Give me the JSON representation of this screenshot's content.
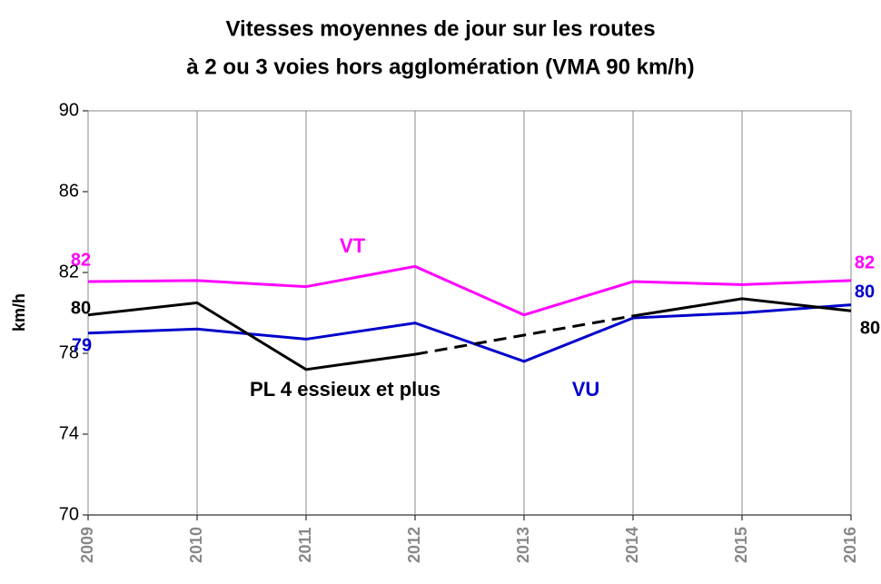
{
  "chart_data": {
    "type": "line",
    "title": [
      "Vitesses moyennes de jour sur les routes",
      "à 2 ou 3 voies hors agglomération (VMA 90 km/h)"
    ],
    "y_label": "km/h",
    "categories": [
      "2009",
      "2010",
      "2011",
      "2012",
      "2013",
      "2014",
      "2015",
      "2016"
    ],
    "ylim": [
      70,
      90
    ],
    "yticks": [
      70,
      74,
      78,
      82,
      86,
      90
    ],
    "grid": "x",
    "series": [
      {
        "name": "VT",
        "color": "#ff00ff",
        "values": [
          81.55,
          81.6,
          81.3,
          82.3,
          79.9,
          81.55,
          81.4,
          81.6
        ],
        "value_labels": [
          "82",
          null,
          null,
          null,
          null,
          null,
          null,
          "82"
        ]
      },
      {
        "name": "VU",
        "color": "#0000cc",
        "values": [
          79.0,
          79.2,
          78.7,
          79.5,
          77.6,
          79.75,
          80.0,
          80.4
        ],
        "value_labels": [
          "79",
          null,
          null,
          null,
          null,
          null,
          null,
          "80"
        ]
      },
      {
        "name": "PL 4 essieux et plus",
        "color": "#000000",
        "values": [
          79.9,
          80.5,
          77.2,
          77.95,
          78.9,
          79.85,
          80.7,
          80.1
        ],
        "value_labels": [
          "80",
          null,
          null,
          null,
          null,
          null,
          null,
          "80"
        ],
        "dashed": [
          "2012",
          "2014"
        ]
      }
    ]
  }
}
